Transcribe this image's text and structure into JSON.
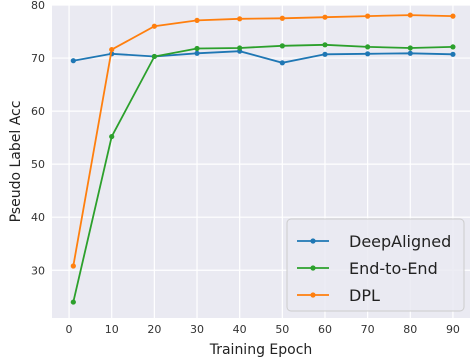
{
  "chart_data": {
    "type": "line",
    "title": "",
    "xlabel": "Training Epoch",
    "ylabel": "Pseudo Label Acc",
    "x": [
      1,
      10,
      20,
      30,
      40,
      50,
      60,
      70,
      80,
      90
    ],
    "xticks": [
      "0",
      "10",
      "20",
      "30",
      "40",
      "50",
      "60",
      "70",
      "80",
      "90"
    ],
    "yticks": [
      "30",
      "40",
      "50",
      "60",
      "70",
      "80"
    ],
    "xlim": [
      -4,
      94
    ],
    "ylim": [
      21,
      80
    ],
    "grid": true,
    "legend_position": "bottom-right",
    "series": [
      {
        "name": "DeepAligned",
        "color": "#1f77b4",
        "values": [
          69.5,
          70.8,
          70.3,
          70.9,
          71.3,
          69.1,
          70.7,
          70.8,
          70.9,
          70.7
        ]
      },
      {
        "name": "End-to-End",
        "color": "#2ca02c",
        "values": [
          24.0,
          55.2,
          70.3,
          71.8,
          71.9,
          72.3,
          72.5,
          72.1,
          71.9,
          72.1
        ]
      },
      {
        "name": "DPL",
        "color": "#ff7f0e",
        "values": [
          30.8,
          71.6,
          76.0,
          77.1,
          77.4,
          77.5,
          77.7,
          77.9,
          78.1,
          77.9
        ]
      }
    ]
  }
}
